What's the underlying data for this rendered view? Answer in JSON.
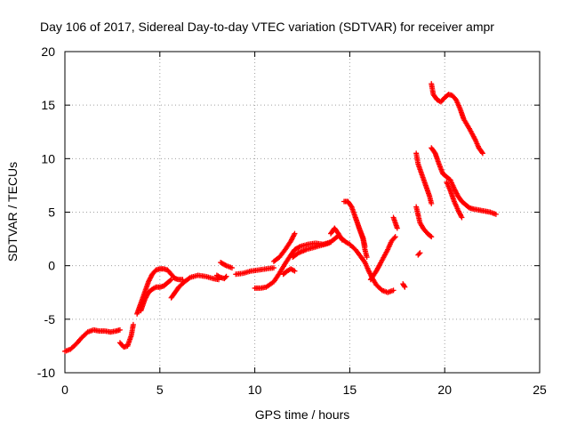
{
  "chart_data": {
    "type": "scatter",
    "title": "Day 106 of 2017, Sidereal Day-to-day VTEC variation (SDTVAR) for receiver ampr",
    "xlabel": "GPS time / hours",
    "ylabel": "SDTVAR / TECUs",
    "xlim": [
      0,
      25
    ],
    "ylim": [
      -10,
      20
    ],
    "xticks": [
      0,
      5,
      10,
      15,
      20,
      25
    ],
    "yticks": [
      -10,
      -5,
      0,
      5,
      10,
      15,
      20
    ],
    "grid": true,
    "legend": "none",
    "marker": "plus",
    "color": "#ff0000",
    "segments": [
      [
        [
          0.0,
          -8.0
        ],
        [
          0.3,
          -7.8
        ],
        [
          0.6,
          -7.3
        ],
        [
          0.9,
          -6.7
        ],
        [
          1.2,
          -6.2
        ],
        [
          1.5,
          -6.0
        ],
        [
          1.8,
          -6.1
        ],
        [
          2.1,
          -6.1
        ],
        [
          2.4,
          -6.2
        ],
        [
          2.7,
          -6.1
        ],
        [
          2.9,
          -6.0
        ]
      ],
      [
        [
          2.9,
          -7.2
        ],
        [
          3.1,
          -7.6
        ],
        [
          3.3,
          -7.5
        ],
        [
          3.5,
          -6.5
        ],
        [
          3.6,
          -5.5
        ]
      ],
      [
        [
          3.8,
          -4.5
        ],
        [
          4.0,
          -3.5
        ],
        [
          4.2,
          -2.5
        ],
        [
          4.4,
          -1.5
        ],
        [
          4.6,
          -0.8
        ],
        [
          4.8,
          -0.4
        ],
        [
          5.0,
          -0.3
        ],
        [
          5.2,
          -0.3
        ],
        [
          5.4,
          -0.4
        ],
        [
          5.6,
          -0.8
        ],
        [
          5.8,
          -1.2
        ],
        [
          6.0,
          -1.3
        ],
        [
          6.2,
          -1.3
        ]
      ],
      [
        [
          4.0,
          -4.2
        ],
        [
          4.2,
          -3.2
        ],
        [
          4.4,
          -2.5
        ],
        [
          4.6,
          -2.2
        ],
        [
          4.8,
          -2.0
        ],
        [
          5.0,
          -2.0
        ],
        [
          5.2,
          -1.9
        ],
        [
          5.4,
          -1.6
        ],
        [
          5.6,
          -1.3
        ]
      ],
      [
        [
          5.6,
          -3.0
        ],
        [
          5.8,
          -2.5
        ],
        [
          6.0,
          -2.0
        ],
        [
          6.3,
          -1.5
        ],
        [
          6.6,
          -1.1
        ],
        [
          7.0,
          -0.9
        ],
        [
          7.4,
          -1.0
        ],
        [
          7.8,
          -1.2
        ],
        [
          8.1,
          -1.3
        ]
      ],
      [
        [
          8.0,
          -0.9
        ],
        [
          8.2,
          -1.1
        ],
        [
          8.4,
          -1.2
        ],
        [
          8.5,
          -1.0
        ]
      ],
      [
        [
          8.2,
          0.3
        ],
        [
          8.5,
          0.0
        ],
        [
          8.8,
          -0.2
        ]
      ],
      [
        [
          9.0,
          -0.8
        ],
        [
          9.4,
          -0.7
        ],
        [
          9.8,
          -0.5
        ],
        [
          10.2,
          -0.4
        ],
        [
          10.6,
          -0.3
        ],
        [
          11.0,
          -0.2
        ]
      ],
      [
        [
          10.0,
          -2.1
        ],
        [
          10.3,
          -2.1
        ],
        [
          10.6,
          -2.0
        ],
        [
          11.0,
          -1.5
        ],
        [
          11.3,
          -0.7
        ],
        [
          11.6,
          0.2
        ],
        [
          11.9,
          1.0
        ],
        [
          12.1,
          1.5
        ],
        [
          12.4,
          1.8
        ],
        [
          12.8,
          2.0
        ],
        [
          13.2,
          2.1
        ],
        [
          13.6,
          2.0
        ],
        [
          14.0,
          2.2
        ]
      ],
      [
        [
          11.0,
          0.4
        ],
        [
          11.3,
          0.8
        ],
        [
          11.6,
          1.5
        ],
        [
          11.9,
          2.3
        ],
        [
          12.1,
          3.0
        ]
      ],
      [
        [
          11.5,
          -0.8
        ],
        [
          11.7,
          -0.5
        ],
        [
          11.9,
          -0.3
        ],
        [
          12.1,
          -0.5
        ]
      ],
      [
        [
          12.0,
          0.8
        ],
        [
          12.3,
          1.2
        ],
        [
          12.7,
          1.5
        ],
        [
          13.1,
          1.7
        ],
        [
          13.5,
          1.9
        ],
        [
          13.9,
          2.1
        ],
        [
          14.2,
          2.5
        ],
        [
          14.4,
          2.8
        ],
        [
          14.6,
          2.5
        ],
        [
          14.8,
          2.2
        ],
        [
          15.0,
          2.0
        ],
        [
          15.3,
          1.5
        ],
        [
          15.6,
          0.8
        ],
        [
          15.8,
          0.3
        ],
        [
          16.0,
          -0.5
        ],
        [
          16.2,
          -1.2
        ],
        [
          16.4,
          -1.8
        ],
        [
          16.7,
          -2.3
        ],
        [
          17.0,
          -2.5
        ],
        [
          17.3,
          -2.3
        ]
      ],
      [
        [
          14.0,
          3.0
        ],
        [
          14.2,
          3.5
        ],
        [
          14.4,
          3.0
        ],
        [
          14.6,
          2.4
        ]
      ],
      [
        [
          14.7,
          6.0
        ],
        [
          14.9,
          6.0
        ],
        [
          15.1,
          5.5
        ],
        [
          15.3,
          4.5
        ],
        [
          15.5,
          3.5
        ],
        [
          15.7,
          2.5
        ],
        [
          15.8,
          1.5
        ],
        [
          15.9,
          0.8
        ]
      ],
      [
        [
          15.3,
          4.5
        ],
        [
          15.5,
          3.5
        ],
        [
          15.7,
          2.6
        ],
        [
          15.8,
          1.8
        ]
      ],
      [
        [
          16.1,
          -1.3
        ],
        [
          16.4,
          -0.5
        ],
        [
          16.7,
          0.5
        ],
        [
          17.0,
          1.5
        ],
        [
          17.2,
          2.3
        ],
        [
          17.4,
          2.7
        ]
      ],
      [
        [
          17.8,
          -1.7
        ],
        [
          17.9,
          -2.0
        ]
      ],
      [
        [
          17.3,
          4.5
        ],
        [
          17.5,
          3.5
        ]
      ],
      [
        [
          18.6,
          1.0
        ],
        [
          18.7,
          1.2
        ]
      ],
      [
        [
          18.5,
          5.5
        ],
        [
          18.7,
          4.0
        ],
        [
          18.9,
          3.4
        ],
        [
          19.1,
          3.0
        ],
        [
          19.3,
          2.7
        ]
      ],
      [
        [
          18.5,
          10.5
        ],
        [
          18.6,
          9.5
        ],
        [
          18.8,
          8.5
        ],
        [
          19.0,
          7.5
        ],
        [
          19.2,
          6.5
        ],
        [
          19.3,
          5.8
        ]
      ],
      [
        [
          19.3,
          11.0
        ],
        [
          19.5,
          10.5
        ],
        [
          19.7,
          9.5
        ],
        [
          19.9,
          8.6
        ],
        [
          20.1,
          8.3
        ],
        [
          20.3,
          8.0
        ],
        [
          20.5,
          7.2
        ],
        [
          20.7,
          6.5
        ],
        [
          20.9,
          6.0
        ],
        [
          21.1,
          5.7
        ],
        [
          21.3,
          5.4
        ],
        [
          21.5,
          5.3
        ],
        [
          21.8,
          5.2
        ],
        [
          22.1,
          5.1
        ],
        [
          22.4,
          5.0
        ],
        [
          22.7,
          4.8
        ]
      ],
      [
        [
          20.1,
          7.8
        ],
        [
          20.3,
          7.0
        ],
        [
          20.5,
          6.0
        ],
        [
          20.7,
          5.2
        ],
        [
          20.9,
          4.5
        ]
      ],
      [
        [
          19.3,
          17.0
        ],
        [
          19.4,
          16.0
        ],
        [
          19.6,
          15.5
        ],
        [
          19.8,
          15.3
        ],
        [
          20.0,
          15.7
        ],
        [
          20.2,
          16.0
        ],
        [
          20.4,
          15.9
        ],
        [
          20.6,
          15.5
        ],
        [
          20.8,
          14.7
        ],
        [
          21.0,
          13.7
        ],
        [
          21.3,
          12.8
        ],
        [
          21.6,
          11.8
        ],
        [
          21.8,
          11.0
        ],
        [
          22.0,
          10.5
        ]
      ]
    ]
  }
}
